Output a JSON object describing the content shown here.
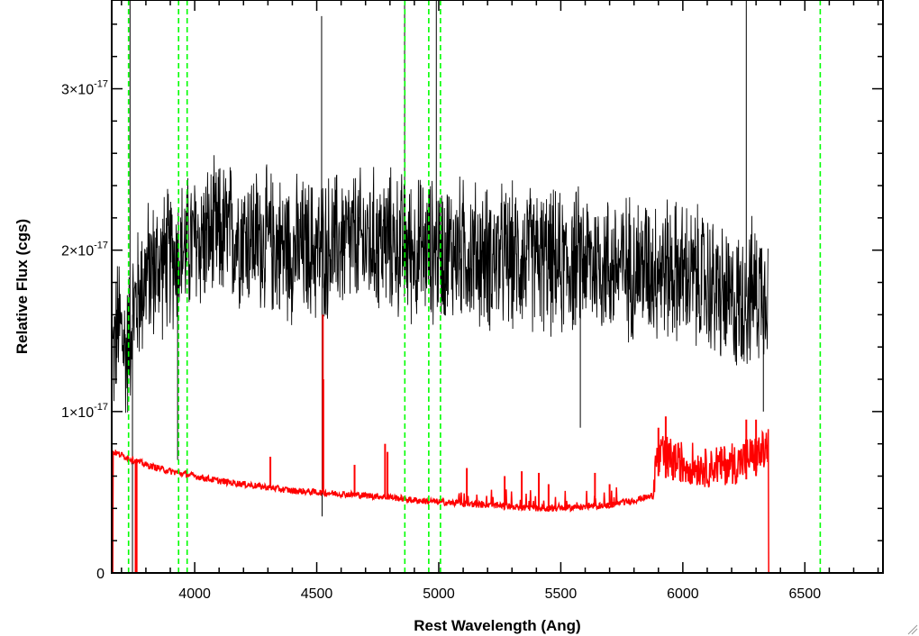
{
  "chart_data": {
    "type": "line",
    "title": "",
    "xlabel": "Rest Wavelength (Ang)",
    "ylabel": "Relative Flux (cgs)",
    "xlim": [
      3660,
      6820
    ],
    "ylim": [
      0,
      3.55e-17
    ],
    "x_ticks": [
      {
        "value": 4000,
        "label": "4000"
      },
      {
        "value": 4500,
        "label": "4500"
      },
      {
        "value": 5000,
        "label": "5000"
      },
      {
        "value": 5500,
        "label": "5500"
      },
      {
        "value": 6000,
        "label": "6000"
      },
      {
        "value": 6500,
        "label": "6500"
      }
    ],
    "y_ticks": [
      {
        "value": 0,
        "label": "0",
        "exp": ""
      },
      {
        "value": 1e-17,
        "label": "1×10",
        "exp": "-17"
      },
      {
        "value": 2e-17,
        "label": "2×10",
        "exp": "-17"
      },
      {
        "value": 3e-17,
        "label": "3×10",
        "exp": "-17"
      }
    ],
    "grid": false,
    "legend": "none",
    "series": [
      {
        "color": "#000000",
        "x_range": [
          3665,
          6350
        ],
        "points": [
          [
            3665,
            1.35e-17
          ],
          [
            3690,
            1.55e-17
          ],
          [
            3720,
            1.35e-17
          ],
          [
            3745,
            1.6e-17
          ],
          [
            3800,
            1.85e-17
          ],
          [
            3900,
            1.95e-17
          ],
          [
            4000,
            2.05e-17
          ],
          [
            4100,
            2.1e-17
          ],
          [
            4200,
            2.1e-17
          ],
          [
            4300,
            2.05e-17
          ],
          [
            4400,
            2e-17
          ],
          [
            4500,
            2e-17
          ],
          [
            4600,
            2.05e-17
          ],
          [
            4700,
            2.05e-17
          ],
          [
            4800,
            2.05e-17
          ],
          [
            4900,
            2e-17
          ],
          [
            5000,
            2e-17
          ],
          [
            5100,
            2e-17
          ],
          [
            5200,
            1.95e-17
          ],
          [
            5300,
            1.95e-17
          ],
          [
            5400,
            1.95e-17
          ],
          [
            5500,
            1.9e-17
          ],
          [
            5600,
            1.95e-17
          ],
          [
            5700,
            1.9e-17
          ],
          [
            5800,
            1.9e-17
          ],
          [
            5900,
            1.9e-17
          ],
          [
            6000,
            1.85e-17
          ],
          [
            6100,
            1.8e-17
          ],
          [
            6200,
            1.65e-17
          ],
          [
            6250,
            1.7e-17
          ],
          [
            6300,
            1.75e-17
          ],
          [
            6350,
            1.8e-17
          ]
        ],
        "noise": 4e-18,
        "spikes": [
          [
            3735,
            3.55e-17
          ],
          [
            3745,
            0.0
          ],
          [
            3930,
            7e-18
          ],
          [
            4520,
            3.45e-17
          ],
          [
            4522,
            3.5e-18
          ],
          [
            4860,
            3.55e-17
          ],
          [
            4990,
            3.55e-17
          ],
          [
            5580,
            9e-18
          ],
          [
            6260,
            3.55e-17
          ],
          [
            6330,
            1e-17
          ]
        ]
      },
      {
        "color": "#ff0000",
        "points": [
          [
            3665,
            7.5e-18
          ],
          [
            3700,
            7.3e-18
          ],
          [
            3800,
            6.7e-18
          ],
          [
            3900,
            6.3e-18
          ],
          [
            4000,
            6e-18
          ],
          [
            4100,
            5.7e-18
          ],
          [
            4200,
            5.5e-18
          ],
          [
            4300,
            5.3e-18
          ],
          [
            4400,
            5.1e-18
          ],
          [
            4500,
            5e-18
          ],
          [
            4600,
            4.9e-18
          ],
          [
            4700,
            4.8e-18
          ],
          [
            4800,
            4.7e-18
          ],
          [
            4900,
            4.5e-18
          ],
          [
            5000,
            4.4e-18
          ],
          [
            5100,
            4.3e-18
          ],
          [
            5200,
            4.2e-18
          ],
          [
            5300,
            4.1e-18
          ],
          [
            5400,
            4e-18
          ],
          [
            5500,
            4e-18
          ],
          [
            5600,
            4.1e-18
          ],
          [
            5700,
            4.2e-18
          ],
          [
            5800,
            4.5e-18
          ],
          [
            5880,
            4.8e-18
          ],
          [
            5900,
            6e-18
          ],
          [
            5950,
            5.8e-18
          ],
          [
            6000,
            5.5e-18
          ],
          [
            6100,
            5.3e-18
          ],
          [
            6200,
            5.5e-18
          ],
          [
            6300,
            6e-18
          ],
          [
            6350,
            6.5e-18
          ],
          [
            6352,
            0.0
          ],
          [
            6820,
            0.0
          ]
        ],
        "noise": 2e-19,
        "bumps": [
          [
            3758,
            0.0
          ],
          [
            3762,
            0.0
          ],
          [
            4310,
            7.2e-18
          ],
          [
            4525,
            1.6e-17
          ],
          [
            4527,
            1.2e-17
          ],
          [
            4655,
            6.7e-18
          ],
          [
            4780,
            8e-18
          ],
          [
            4790,
            7.5e-18
          ],
          [
            5115,
            6.5e-18
          ],
          [
            5270,
            6e-18
          ],
          [
            5340,
            6.3e-18
          ],
          [
            5410,
            6.2e-18
          ],
          [
            5450,
            5.5e-18
          ],
          [
            5640,
            6.2e-18
          ],
          [
            5700,
            5.5e-18
          ],
          [
            5900,
            9e-18
          ],
          [
            5930,
            9.7e-18
          ],
          [
            5960,
            7.5e-18
          ],
          [
            6260,
            9.5e-18
          ],
          [
            6300,
            9.5e-18
          ]
        ]
      }
    ],
    "vlines": {
      "color": "#00ff00",
      "style": "dashed",
      "x": [
        3729,
        3934,
        3969,
        4861,
        4959,
        5007,
        6563
      ]
    }
  }
}
